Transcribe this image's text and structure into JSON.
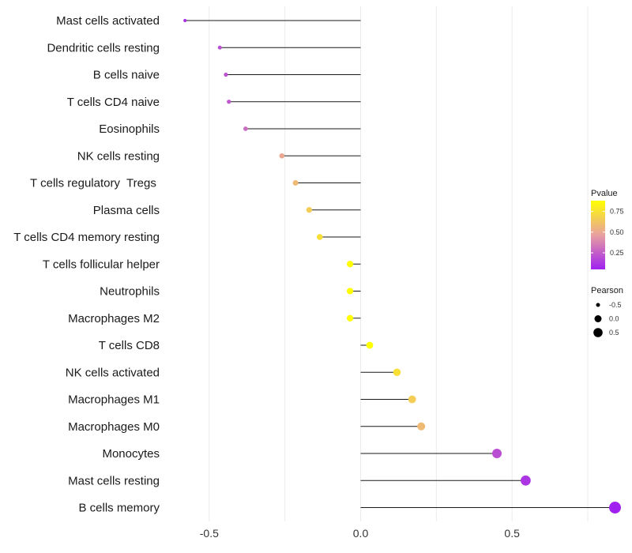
{
  "chart_data": {
    "type": "lollipop",
    "orientation": "horizontal",
    "title": "",
    "xlabel": "",
    "ylabel": "",
    "xlim": [
      -0.63,
      0.87
    ],
    "x_ticks": [
      -0.5,
      0.0,
      0.5
    ],
    "x_tick_labels": [
      "-0.5",
      "0.0",
      "0.5"
    ],
    "grid": true,
    "points": [
      {
        "category": "Mast cells activated",
        "pearson": -0.58,
        "pvalue": 0.1
      },
      {
        "category": "Dendritic cells resting",
        "pearson": -0.465,
        "pvalue": 0.2
      },
      {
        "category": "B cells naive",
        "pearson": -0.445,
        "pvalue": 0.22
      },
      {
        "category": "T cells CD4 naive",
        "pearson": -0.435,
        "pvalue": 0.23
      },
      {
        "category": "Eosinophils",
        "pearson": -0.38,
        "pvalue": 0.3
      },
      {
        "category": "NK cells resting",
        "pearson": -0.26,
        "pvalue": 0.5
      },
      {
        "category": "T cells regulatory  Tregs ",
        "pearson": -0.215,
        "pvalue": 0.58
      },
      {
        "category": "Plasma cells",
        "pearson": -0.17,
        "pvalue": 0.66
      },
      {
        "category": "T cells CD4 memory resting",
        "pearson": -0.135,
        "pvalue": 0.74
      },
      {
        "category": "T cells follicular helper",
        "pearson": -0.035,
        "pvalue": 0.95
      },
      {
        "category": "Neutrophils",
        "pearson": -0.035,
        "pvalue": 0.95
      },
      {
        "category": "Macrophages M2",
        "pearson": -0.035,
        "pvalue": 0.95
      },
      {
        "category": "T cells CD8",
        "pearson": 0.03,
        "pvalue": 0.95
      },
      {
        "category": "NK cells activated",
        "pearson": 0.12,
        "pvalue": 0.74
      },
      {
        "category": "Macrophages M1",
        "pearson": 0.17,
        "pvalue": 0.66
      },
      {
        "category": "Macrophages M0",
        "pearson": 0.2,
        "pvalue": 0.58
      },
      {
        "category": "Monocytes",
        "pearson": 0.45,
        "pvalue": 0.2
      },
      {
        "category": "Mast cells resting",
        "pearson": 0.545,
        "pvalue": 0.12
      },
      {
        "category": "B cells memory",
        "pearson": 0.84,
        "pvalue": 0.02
      }
    ],
    "legend_placement": "right",
    "color_legend": {
      "title": "Pvalue",
      "ticks": [
        0.25,
        0.5,
        0.75
      ],
      "tick_labels": [
        "0.25",
        "0.50",
        "0.75"
      ],
      "range": [
        0.05,
        0.88
      ],
      "low_color": "#a020f0",
      "mid_color": "#e8a0a0",
      "high_color": "#ffff00"
    },
    "size_legend": {
      "title": "Pearson",
      "values": [
        -0.5,
        0.0,
        0.5
      ],
      "labels": [
        "-0.5",
        "0.0",
        "0.5"
      ]
    },
    "colors": {
      "stem": "#1a1a1a",
      "grid": "#ebebeb",
      "legend_dot": "#000000"
    }
  }
}
